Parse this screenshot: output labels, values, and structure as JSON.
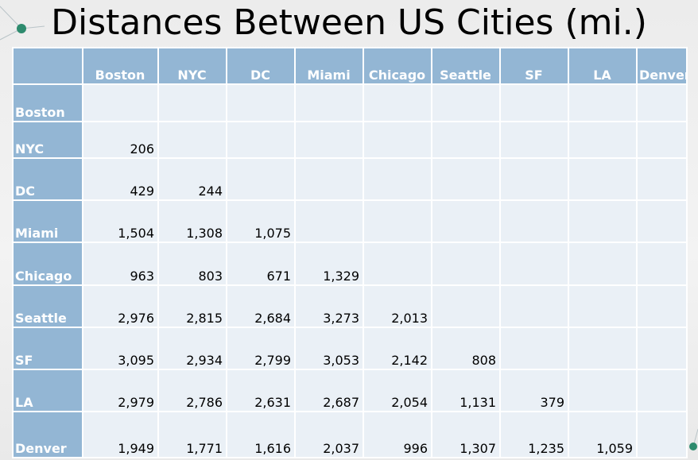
{
  "title": "Distances Between US Cities (mi.)",
  "colors": {
    "header_fill": "#93b6d4",
    "cell_fill": "#eaf0f6",
    "accent_dot": "#2e8b6e"
  },
  "columns": [
    "Boston",
    "NYC",
    "DC",
    "Miami",
    "Chicago",
    "Seattle",
    "SF",
    "LA",
    "Denver"
  ],
  "rows": [
    {
      "label": "Boston",
      "values": [
        "",
        "",
        "",
        "",
        "",
        "",
        "",
        "",
        ""
      ]
    },
    {
      "label": "NYC",
      "values": [
        "206",
        "",
        "",
        "",
        "",
        "",
        "",
        "",
        ""
      ]
    },
    {
      "label": "DC",
      "values": [
        "429",
        "244",
        "",
        "",
        "",
        "",
        "",
        "",
        ""
      ]
    },
    {
      "label": "Miami",
      "values": [
        "1,504",
        "1,308",
        "1,075",
        "",
        "",
        "",
        "",
        "",
        ""
      ]
    },
    {
      "label": "Chicago",
      "values": [
        "963",
        "803",
        "671",
        "1,329",
        "",
        "",
        "",
        "",
        ""
      ]
    },
    {
      "label": "Seattle",
      "values": [
        "2,976",
        "2,815",
        "2,684",
        "3,273",
        "2,013",
        "",
        "",
        "",
        ""
      ]
    },
    {
      "label": "SF",
      "values": [
        "3,095",
        "2,934",
        "2,799",
        "3,053",
        "2,142",
        "808",
        "",
        "",
        ""
      ]
    },
    {
      "label": "LA",
      "values": [
        "2,979",
        "2,786",
        "2,631",
        "2,687",
        "2,054",
        "1,131",
        "379",
        "",
        ""
      ]
    },
    {
      "label": "Denver",
      "values": [
        "1,949",
        "1,771",
        "1,616",
        "2,037",
        "996",
        "1,307",
        "1,235",
        "1,059",
        ""
      ]
    }
  ]
}
